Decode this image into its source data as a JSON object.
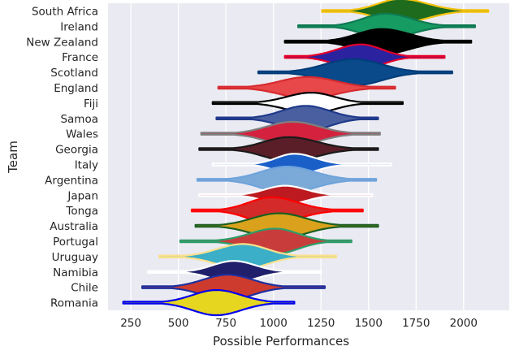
{
  "chart_data": {
    "type": "violin",
    "orientation": "horizontal",
    "xlabel": "Possible Performances",
    "ylabel": "Team",
    "xlim": [
      130,
      2240
    ],
    "x_ticks": [
      250,
      500,
      750,
      1000,
      1250,
      1500,
      1750,
      2000
    ],
    "grid": true,
    "background": "#EAEAF2",
    "series": [
      {
        "team": "South Africa",
        "fill": "#1E6B1E",
        "line": "#F4C20D",
        "min": 1255,
        "max": 2130,
        "peak": 1665,
        "sl": 115,
        "sr": 145,
        "hh": 0.38
      },
      {
        "team": "Ireland",
        "fill": "#169B62",
        "line": "#0E7A52",
        "min": 1130,
        "max": 2060,
        "peak": 1590,
        "sl": 120,
        "sr": 135,
        "hh": 0.4
      },
      {
        "team": "New Zealand",
        "fill": "#000000",
        "line": "#000000",
        "min": 1060,
        "max": 2040,
        "peak": 1570,
        "sl": 130,
        "sr": 145,
        "hh": 0.4
      },
      {
        "team": "France",
        "fill": "#2B22A0",
        "line": "#E4002B",
        "min": 1060,
        "max": 1900,
        "peak": 1460,
        "sl": 125,
        "sr": 110,
        "hh": 0.4
      },
      {
        "team": "Scotland",
        "fill": "#0A4A8A",
        "line": "#003D7A",
        "min": 920,
        "max": 1940,
        "peak": 1420,
        "sl": 150,
        "sr": 150,
        "hh": 0.42
      },
      {
        "team": "England",
        "fill": "#E8484A",
        "line": "#D72B2F",
        "min": 710,
        "max": 1640,
        "peak": 1180,
        "sl": 145,
        "sr": 150,
        "hh": 0.34
      },
      {
        "team": "Fiji",
        "fill": "#FFFFFF",
        "line": "#000000",
        "min": 680,
        "max": 1680,
        "peak": 1200,
        "sl": 130,
        "sr": 120,
        "hh": 0.33
      },
      {
        "team": "Samoa",
        "fill": "#4A5FA0",
        "line": "#1F3A8A",
        "min": 700,
        "max": 1550,
        "peak": 1170,
        "sl": 125,
        "sr": 125,
        "hh": 0.4
      },
      {
        "team": "Wales",
        "fill": "#D4213D",
        "line": "#7F7F7F",
        "min": 620,
        "max": 1560,
        "peak": 1100,
        "sl": 135,
        "sr": 140,
        "hh": 0.38
      },
      {
        "team": "Georgia",
        "fill": "#5A1E28",
        "line": "#1A1A1A",
        "min": 610,
        "max": 1550,
        "peak": 1080,
        "sl": 130,
        "sr": 150,
        "hh": 0.38
      },
      {
        "team": "Italy",
        "fill": "#1A5FC8",
        "line": "#FFFFFF",
        "min": 680,
        "max": 1620,
        "peak": 1110,
        "sl": 95,
        "sr": 110,
        "hh": 0.34
      },
      {
        "team": "Argentina",
        "fill": "#7BAAD8",
        "line": "#6FA3DC",
        "min": 600,
        "max": 1540,
        "peak": 1070,
        "sl": 135,
        "sr": 145,
        "hh": 0.42
      },
      {
        "team": "Japan",
        "fill": "#BC1A20",
        "line": "#FFFFFF",
        "min": 610,
        "max": 1520,
        "peak": 1060,
        "sl": 105,
        "sr": 110,
        "hh": 0.3
      },
      {
        "team": "Tonga",
        "fill": "#D42A2A",
        "line": "#FF0000",
        "min": 570,
        "max": 1470,
        "peak": 990,
        "sl": 120,
        "sr": 140,
        "hh": 0.42
      },
      {
        "team": "Australia",
        "fill": "#DAA21C",
        "line": "#1B5E20",
        "min": 590,
        "max": 1550,
        "peak": 1030,
        "sl": 140,
        "sr": 140,
        "hh": 0.4
      },
      {
        "team": "Portugal",
        "fill": "#C83C3C",
        "line": "#2E9E6A",
        "min": 510,
        "max": 1410,
        "peak": 1010,
        "sl": 135,
        "sr": 120,
        "hh": 0.4
      },
      {
        "team": "Uruguay",
        "fill": "#3BAFC8",
        "line": "#F9E08B",
        "min": 400,
        "max": 1330,
        "peak": 840,
        "sl": 135,
        "sr": 125,
        "hh": 0.4
      },
      {
        "team": "Namibia",
        "fill": "#1F1F6B",
        "line": "#FFFFFF",
        "min": 340,
        "max": 1250,
        "peak": 790,
        "sl": 110,
        "sr": 115,
        "hh": 0.35
      },
      {
        "team": "Chile",
        "fill": "#CD3B2E",
        "line": "#1F2F9E",
        "min": 310,
        "max": 1270,
        "peak": 760,
        "sl": 130,
        "sr": 130,
        "hh": 0.4
      },
      {
        "team": "Romania",
        "fill": "#E6D620",
        "line": "#0000EE",
        "min": 210,
        "max": 1110,
        "peak": 700,
        "sl": 125,
        "sr": 130,
        "hh": 0.4
      }
    ]
  }
}
